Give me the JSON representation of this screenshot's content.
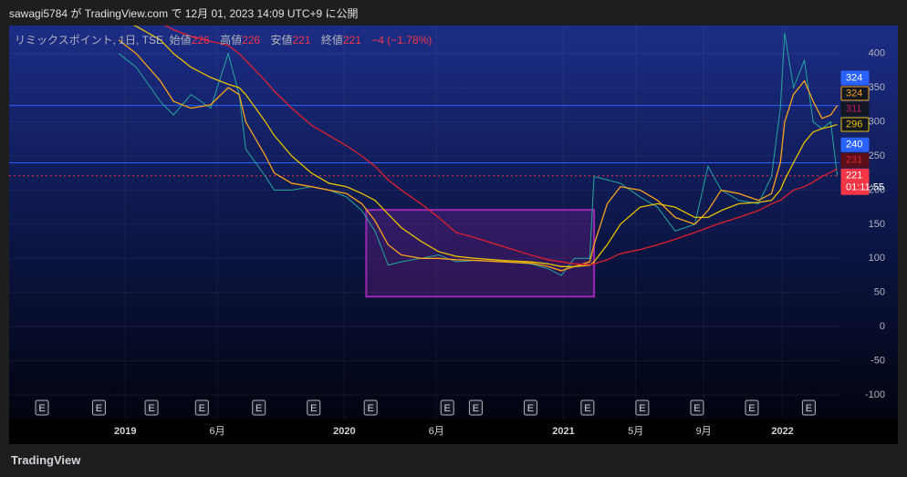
{
  "header": "sawagi5784 が TradingView.com で 12月 01, 2023 14:09 UTC+9 に公開",
  "legend": {
    "symbol": "リミックスポイント, 1日, TSE",
    "open_label": "始値",
    "open": 226,
    "high_label": "高値",
    "high": 226,
    "low_label": "安値",
    "low": 221,
    "close_label": "終値",
    "close": 221,
    "change": "−4 (−1.78%)"
  },
  "footer": "TradingView",
  "chart_data": {
    "type": "line",
    "x": [
      2018.97,
      2019.05,
      2019.16,
      2019.22,
      2019.3,
      2019.39,
      2019.47,
      2019.52,
      2019.55,
      2019.64,
      2019.68,
      2019.76,
      2019.85,
      2019.93,
      2020.01,
      2020.08,
      2020.14,
      2020.2,
      2020.26,
      2020.35,
      2020.43,
      2020.51,
      2020.6,
      2020.72,
      2020.85,
      2020.93,
      2020.99,
      2021.05,
      2021.12,
      2021.14,
      2021.2,
      2021.26,
      2021.35,
      2021.43,
      2021.51,
      2021.6,
      2021.66,
      2021.72,
      2021.8,
      2021.89,
      2021.95,
      2021.99,
      2022.01,
      2022.05,
      2022.1,
      2022.14,
      2022.18,
      2022.22,
      2022.25
    ],
    "series": [
      {
        "color": "#26a69a",
        "values": [
          400,
          380,
          330,
          310,
          340,
          320,
          400,
          340,
          260,
          220,
          200,
          200,
          205,
          200,
          190,
          170,
          140,
          90,
          95,
          100,
          105,
          95,
          97,
          95,
          92,
          85,
          75,
          100,
          100,
          220,
          215,
          210,
          190,
          175,
          140,
          150,
          235,
          200,
          185,
          180,
          220,
          320,
          430,
          350,
          390,
          300,
          290,
          300,
          221
        ]
      },
      {
        "color": "#f7a21b",
        "values": [
          420,
          400,
          360,
          330,
          320,
          325,
          350,
          340,
          300,
          250,
          225,
          210,
          205,
          200,
          195,
          180,
          155,
          120,
          105,
          100,
          100,
          98,
          97,
          95,
          93,
          88,
          82,
          88,
          95,
          120,
          180,
          205,
          200,
          185,
          160,
          150,
          170,
          200,
          195,
          185,
          195,
          240,
          300,
          340,
          360,
          330,
          305,
          310,
          324
        ]
      },
      {
        "color": "#e5c100",
        "values": [
          450,
          440,
          420,
          400,
          380,
          365,
          355,
          350,
          340,
          300,
          280,
          250,
          225,
          210,
          205,
          195,
          185,
          165,
          145,
          125,
          110,
          103,
          100,
          97,
          95,
          92,
          88,
          88,
          90,
          95,
          120,
          150,
          175,
          180,
          175,
          160,
          160,
          170,
          180,
          182,
          185,
          200,
          215,
          240,
          270,
          285,
          290,
          293,
          296
        ]
      },
      {
        "color": "#e0202f",
        "values": [
          470,
          460,
          445,
          435,
          425,
          418,
          412,
          400,
          390,
          360,
          345,
          320,
          295,
          280,
          265,
          250,
          235,
          215,
          200,
          180,
          160,
          138,
          130,
          118,
          105,
          98,
          95,
          92,
          91,
          92,
          98,
          107,
          113,
          120,
          128,
          138,
          145,
          152,
          160,
          170,
          180,
          185,
          190,
          200,
          205,
          212,
          220,
          226,
          231
        ]
      }
    ],
    "xlim": [
      2018.47,
      2022.26
    ],
    "xticks": [
      {
        "value": 2019,
        "label": "2019"
      },
      {
        "value": 2019.42,
        "label": "6月"
      },
      {
        "value": 2020,
        "label": "2020"
      },
      {
        "value": 2020.42,
        "label": "6月"
      },
      {
        "value": 2021,
        "label": "2021"
      },
      {
        "value": 2021.33,
        "label": "5月"
      },
      {
        "value": 2021.64,
        "label": "9月"
      },
      {
        "value": 2022,
        "label": "2022"
      }
    ],
    "ylim": [
      -136,
      441
    ],
    "yticks": [
      -100,
      -50,
      0,
      50,
      100,
      150,
      200,
      250,
      300,
      350,
      400
    ],
    "grid": true,
    "hlines": [
      {
        "value": 324,
        "color": "#2962ff",
        "dashed": false
      },
      {
        "value": 240,
        "color": "#2962ff",
        "dashed": false
      },
      {
        "value": 221,
        "color": "#f23645",
        "dashed": true
      }
    ],
    "box": {
      "x": [
        2020.1,
        2021.14
      ],
      "y": [
        44,
        171
      ],
      "color": "#9c27b0"
    },
    "earnings": {
      "label": "E",
      "x": [
        2018.62,
        2018.88,
        2019.12,
        2019.35,
        2019.61,
        2019.86,
        2020.12,
        2020.47,
        2020.6,
        2020.85,
        2021.11,
        2021.36,
        2021.61,
        2021.86,
        2022.12
      ]
    },
    "price_tags": [
      {
        "value": 324,
        "bg": "#2962ff",
        "fg": "#ffffff",
        "border": "#2962ff"
      },
      {
        "value": 324,
        "bg": "#131722",
        "fg": "#f7a21b",
        "border": "#f7a21b"
      },
      {
        "value": 311,
        "bg": "#131722",
        "fg": "#c2185b",
        "border": "#131722"
      },
      {
        "value": 296,
        "bg": "#131722",
        "fg": "#e5c100",
        "border": "#e5c100"
      },
      {
        "value": 240,
        "bg": "#2962ff",
        "fg": "#ffffff",
        "border": "#2962ff"
      },
      {
        "value": 231,
        "bg": "#5c0f18",
        "fg": "#e0202f",
        "border": "#5c0f18"
      },
      {
        "value": 221,
        "bg": "#f23645",
        "fg": "#ffffff",
        "border": "#f23645",
        "countdown": "01:11:55"
      }
    ]
  }
}
